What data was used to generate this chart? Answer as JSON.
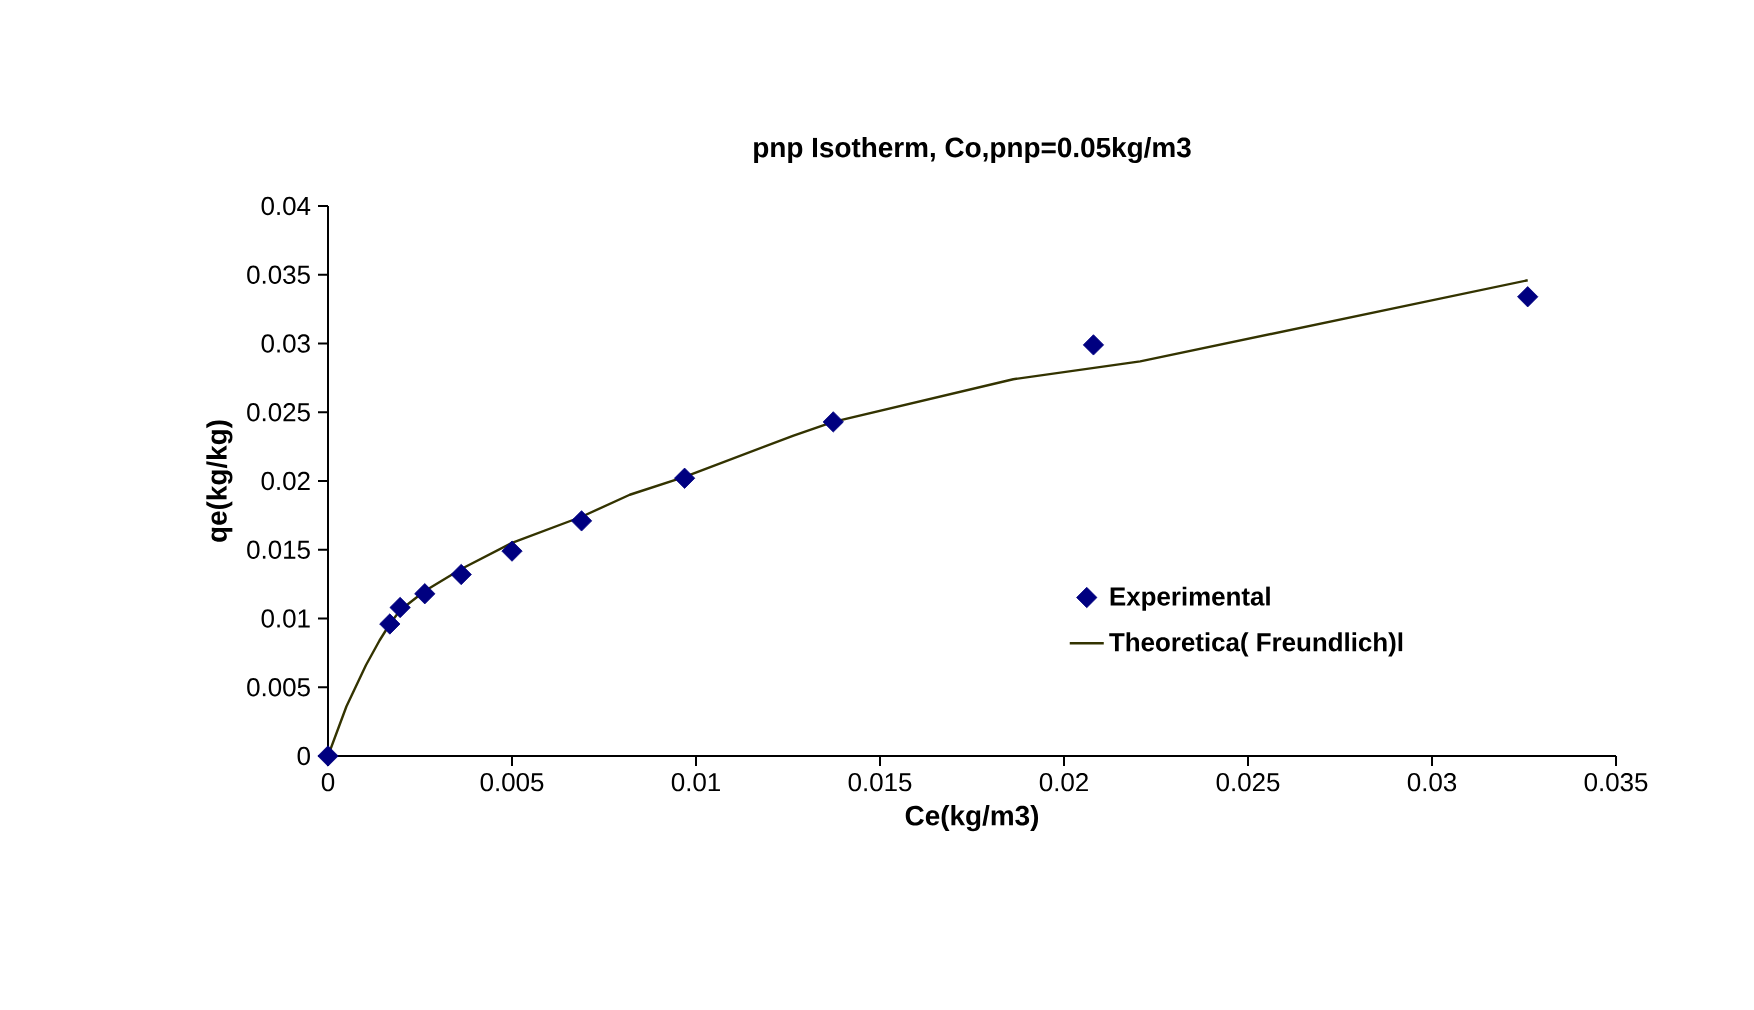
{
  "chart_data": {
    "type": "scatter",
    "title": "pnp Isotherm, Co,pnp=0.05kg/m3",
    "xlabel": "Ce(kg/m3)",
    "ylabel": "qe(kg/kg)",
    "series": [
      {
        "name": "Experimental",
        "color": "#000080",
        "marker": "diamond",
        "x": [
          0,
          0.00168,
          0.00196,
          0.00263,
          0.00362,
          0.005,
          0.00689,
          0.00969,
          0.01373,
          0.0208,
          0.0326
        ],
        "values": [
          0,
          0.0096,
          0.0108,
          0.0118,
          0.0132,
          0.0149,
          0.0171,
          0.0202,
          0.0243,
          0.0299,
          0.0334
        ]
      },
      {
        "name": "Theoretica( Freundlich)l",
        "type": "line",
        "color": "#333300",
        "line_style": "solid",
        "x": [
          0,
          0.0005,
          0.00103,
          0.0014,
          0.00168,
          0.00196,
          0.00263,
          0.00362,
          0.005,
          0.00689,
          0.0082,
          0.00969,
          0.01265,
          0.01373,
          0.01862,
          0.02207,
          0.0326
        ],
        "values": [
          0,
          0.0036,
          0.0066,
          0.0084,
          0.0096,
          0.0106,
          0.012,
          0.0136,
          0.0155,
          0.0174,
          0.019,
          0.0203,
          0.0233,
          0.0243,
          0.0274,
          0.0287,
          0.0346
        ]
      }
    ],
    "xlim": [
      0,
      0.035
    ],
    "ylim": [
      0,
      0.04
    ],
    "xticks": [
      0,
      0.005,
      0.01,
      0.015,
      0.02,
      0.025,
      0.03,
      0.035
    ],
    "yticks": [
      0,
      0.005,
      0.01,
      0.015,
      0.02,
      0.025,
      0.03,
      0.035,
      0.04
    ],
    "grid": false,
    "legend": "right"
  }
}
